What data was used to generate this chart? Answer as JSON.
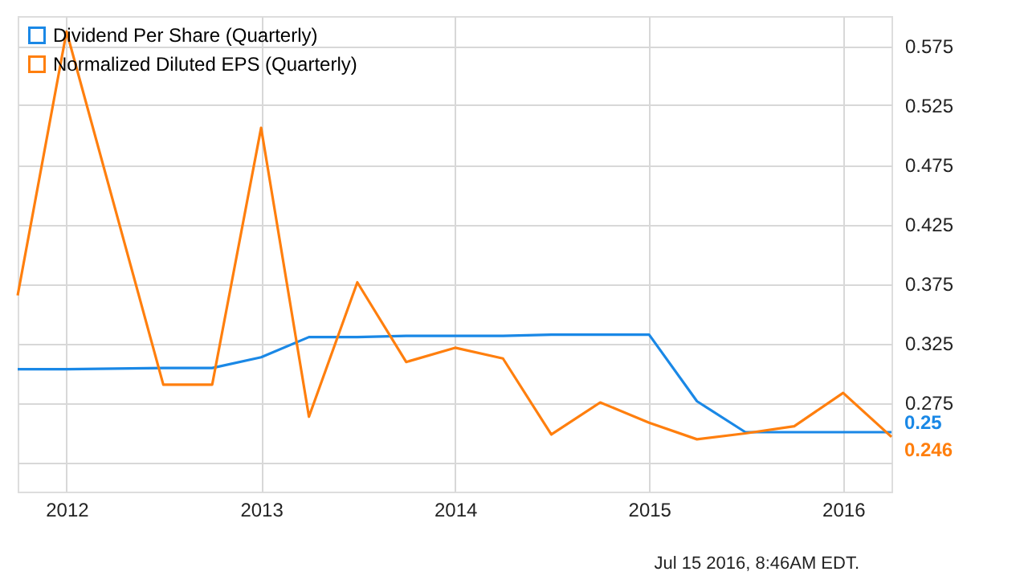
{
  "chart_data": {
    "type": "line",
    "x": [
      "2011-10-01",
      "2012-01-01",
      "2012-07-01",
      "2012-10-01",
      "2013-01-01",
      "2013-04-01",
      "2013-07-01",
      "2013-10-01",
      "2014-01-01",
      "2014-04-01",
      "2014-07-01",
      "2014-10-01",
      "2015-01-01",
      "2015-04-01",
      "2015-07-01",
      "2015-10-01",
      "2016-01-01",
      "2016-04-01"
    ],
    "series": [
      {
        "name": "Dividend Per Share (Quarterly)",
        "color": "#1a88e6",
        "values": [
          0.303,
          0.303,
          0.304,
          0.304,
          0.313,
          0.33,
          0.33,
          0.331,
          0.331,
          0.331,
          0.332,
          0.332,
          0.332,
          0.276,
          0.25,
          0.25,
          0.25,
          0.25
        ]
      },
      {
        "name": "Normalized Diluted EPS (Quarterly)",
        "color": "#ff7f0e",
        "values": [
          0.365,
          0.587,
          0.29,
          0.29,
          0.506,
          0.263,
          0.376,
          0.309,
          0.321,
          0.312,
          0.248,
          0.275,
          0.258,
          0.244,
          0.249,
          0.255,
          0.283,
          0.246
        ]
      }
    ],
    "xlim": [
      "2011-10-01",
      "2016-04-01"
    ],
    "xticks": [
      "2012",
      "2013",
      "2014",
      "2015",
      "2016"
    ],
    "ylim": [
      0.2,
      0.6
    ],
    "yticks": [
      {
        "value": 0.225,
        "label": null
      },
      0.275,
      0.325,
      0.375,
      0.425,
      0.475,
      0.525,
      0.575
    ],
    "grid": true,
    "legend": "top left",
    "marker": "none",
    "line_style": "solid",
    "annotations": [
      {
        "text": "0.25",
        "x": "2016-04-01",
        "y": 0.25
      },
      {
        "text": "0.246",
        "x": "2016-04-01",
        "y": 0.246
      },
      "Jul 15 2016, 8:46AM EDT."
    ]
  }
}
